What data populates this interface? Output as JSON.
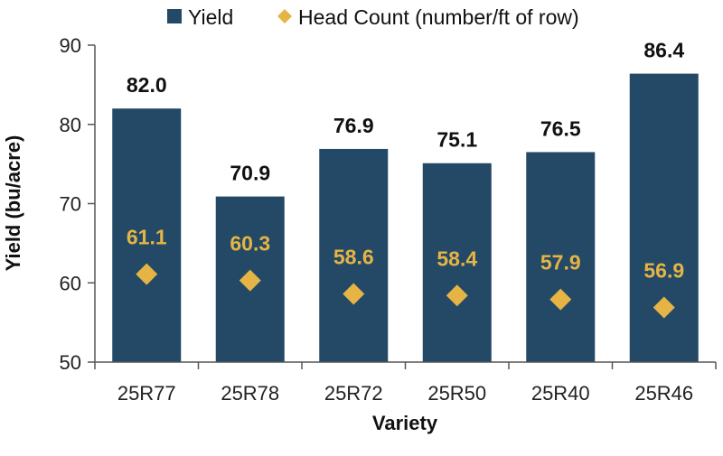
{
  "chart_data": {
    "type": "bar",
    "title": "",
    "xlabel": "Variety",
    "ylabel": "Yield (bu/acre)",
    "ylim": [
      50,
      90
    ],
    "yticks": [
      50,
      60,
      70,
      80,
      90
    ],
    "grid": false,
    "legend_position": "top",
    "categories": [
      "25R77",
      "25R78",
      "25R72",
      "25R50",
      "25R40",
      "25R46"
    ],
    "series": [
      {
        "name": "Yield",
        "kind": "bar",
        "color": "#234966",
        "values": [
          82.0,
          70.9,
          76.9,
          75.1,
          76.5,
          86.4
        ],
        "labels": [
          "82.0",
          "70.9",
          "76.9",
          "75.1",
          "76.5",
          "86.4"
        ]
      },
      {
        "name": "Head Count (number/ft of row)",
        "kind": "scatter",
        "marker": "diamond",
        "color": "#e5b445",
        "values": [
          61.1,
          60.3,
          58.6,
          58.4,
          57.9,
          56.9
        ],
        "labels": [
          "61.1",
          "60.3",
          "58.6",
          "58.4",
          "57.9",
          "56.9"
        ]
      }
    ]
  }
}
